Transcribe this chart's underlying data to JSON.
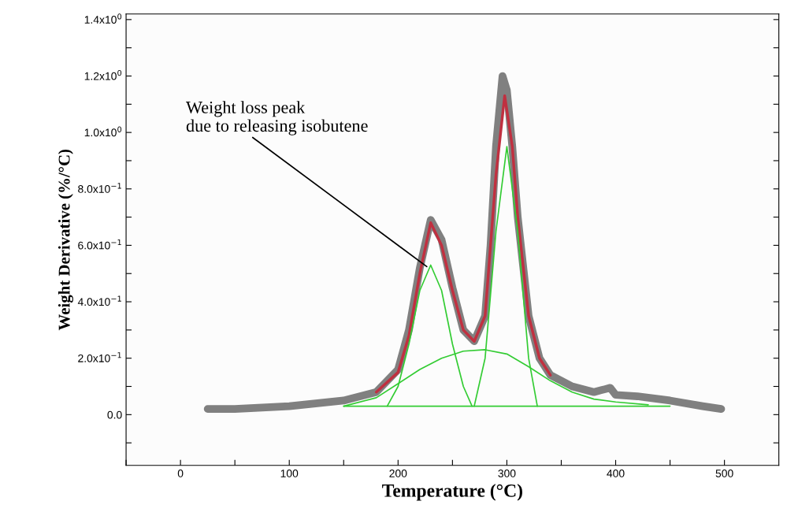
{
  "chart_data": {
    "type": "line",
    "xlabel": "Temperature (°C)",
    "ylabel": "Weight Derivative (%/°C)",
    "xlim": [
      -50,
      550
    ],
    "ylim": [
      -0.18,
      1.42
    ],
    "xticks": [
      {
        "value": -50,
        "label": null
      },
      0,
      {
        "value": 50,
        "label": null
      },
      100,
      {
        "value": 150,
        "label": null
      },
      200,
      {
        "value": 250,
        "label": null
      },
      300,
      {
        "value": 350,
        "label": null
      },
      400,
      {
        "value": 450,
        "label": null
      },
      500
    ],
    "yticks": [
      {
        "value": -0.1,
        "label": null
      },
      {
        "value": 0,
        "label": "0.0"
      },
      {
        "value": 0.1,
        "label": null
      },
      {
        "value": 0.2,
        "label": "2.0x10$^{−1}$"
      },
      {
        "value": 0.3,
        "label": null
      },
      {
        "value": 0.4,
        "label": "4.0x10$^{−1}$"
      },
      {
        "value": 0.5,
        "label": null
      },
      {
        "value": 0.6,
        "label": "6.0x10$^{−1}$"
      },
      {
        "value": 0.7,
        "label": null
      },
      {
        "value": 0.8,
        "label": "8.0x10$^{−1}$"
      },
      {
        "value": 0.9,
        "label": null
      },
      {
        "value": 1.0,
        "label": "1.0x10$^{0}$"
      },
      {
        "value": 1.1,
        "label": null
      },
      {
        "value": 1.2,
        "label": "1.2x10$^{0}$"
      },
      {
        "value": 1.3,
        "label": null
      },
      {
        "value": 1.4,
        "label": "1.4x10$^{0}$"
      }
    ],
    "grid": false,
    "legend": false,
    "series": [
      {
        "color": "#808080",
        "x": [
          25,
          50,
          100,
          150,
          180,
          200,
          210,
          220,
          230,
          240,
          250,
          260,
          270,
          280,
          285,
          290,
          296,
          300,
          305,
          310,
          320,
          330,
          340,
          360,
          380,
          390,
          395,
          400,
          420,
          450,
          480,
          497
        ],
        "values": [
          0.02,
          0.02,
          0.03,
          0.05,
          0.08,
          0.16,
          0.3,
          0.52,
          0.69,
          0.62,
          0.45,
          0.3,
          0.26,
          0.35,
          0.6,
          0.95,
          1.2,
          1.15,
          0.95,
          0.7,
          0.35,
          0.2,
          0.14,
          0.1,
          0.08,
          0.09,
          0.095,
          0.07,
          0.065,
          0.05,
          0.03,
          0.02
        ]
      },
      {
        "color": "#c03040",
        "x": [
          180,
          200,
          210,
          220,
          230,
          240,
          250,
          260,
          270,
          280,
          290,
          298,
          305,
          310,
          320,
          330,
          340
        ],
        "values": [
          0.08,
          0.15,
          0.28,
          0.5,
          0.68,
          0.6,
          0.44,
          0.3,
          0.26,
          0.35,
          0.85,
          1.13,
          0.95,
          0.7,
          0.35,
          0.2,
          0.14
        ]
      },
      {
        "color": "#33cc33",
        "x": [
          190,
          200,
          210,
          220,
          230,
          240,
          250,
          260,
          268
        ],
        "values": [
          0.03,
          0.1,
          0.25,
          0.44,
          0.53,
          0.44,
          0.25,
          0.1,
          0.03
        ]
      },
      {
        "color": "#33cc33",
        "x": [
          270,
          280,
          290,
          300,
          310,
          320,
          328
        ],
        "values": [
          0.03,
          0.2,
          0.65,
          0.95,
          0.65,
          0.2,
          0.03
        ]
      },
      {
        "color": "#33cc33",
        "x": [
          150,
          180,
          200,
          220,
          240,
          260,
          280,
          300,
          320,
          340,
          360,
          380,
          400,
          430
        ],
        "values": [
          0.03,
          0.06,
          0.11,
          0.16,
          0.2,
          0.225,
          0.23,
          0.215,
          0.17,
          0.12,
          0.08,
          0.055,
          0.045,
          0.035
        ]
      },
      {
        "color": "#33cc33",
        "x": [
          150,
          450
        ],
        "values": [
          0.03,
          0.03
        ]
      }
    ],
    "annotations": [
      {
        "text": "Weight loss peak\ndue to releasing isobutene",
        "x": 228,
        "y": 0.52
      }
    ]
  }
}
